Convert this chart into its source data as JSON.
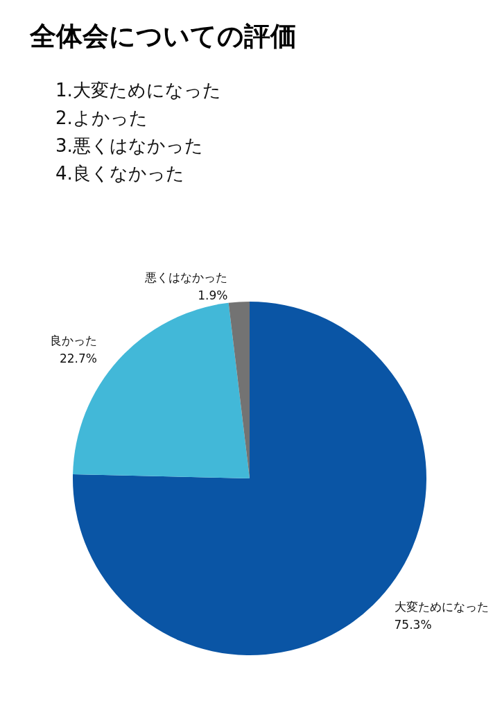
{
  "chart_data": {
    "type": "pie",
    "title": "全体会についての評価",
    "annotations": [
      "1.大変ためになった",
      "2.よかった",
      "3.悪くはなかった",
      "4.良くなかった"
    ],
    "categories": [
      "大変ためになった",
      "良かった",
      "悪くはなかった"
    ],
    "values": [
      75.3,
      22.7,
      1.9
    ],
    "value_labels": [
      "75.3%",
      "22.7%",
      "1.9%"
    ],
    "colors": [
      "#0a55a5",
      "#42b8d8",
      "#737373"
    ],
    "legend": false
  }
}
